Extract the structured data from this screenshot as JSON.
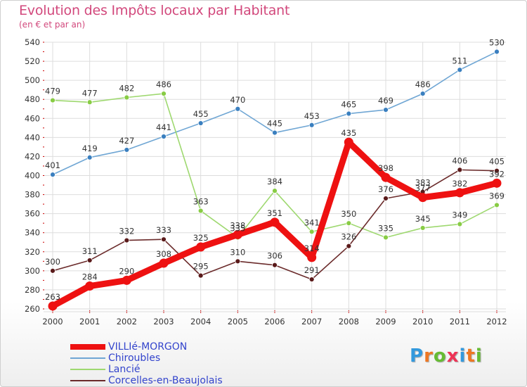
{
  "title": "Evolution des Impôts locaux par Habitant",
  "subtitle": "(en € et par an)",
  "colors": {
    "title": "#d2487c",
    "grid": "#dddddd",
    "axis_ticks": "#cc0000",
    "legend_text": "#3344cc"
  },
  "chart_data": {
    "type": "line",
    "title": "Evolution des Impôts locaux par Habitant",
    "subtitle": "(en € et par an)",
    "xlabel": "",
    "ylabel": "",
    "ylim": [
      260,
      540
    ],
    "yticks": [
      260,
      280,
      300,
      320,
      340,
      360,
      380,
      400,
      420,
      440,
      460,
      480,
      500,
      520,
      540
    ],
    "x": [
      "2000",
      "2001",
      "2002",
      "2003",
      "2004",
      "2005",
      "2006",
      "2007",
      "2008",
      "2009",
      "2010",
      "2011",
      "2012"
    ],
    "grid": true,
    "legend_position": "bottom-left",
    "series": [
      {
        "name": "VILLIé-MORGON",
        "color": "#ee1111",
        "marker_color": "#ee1111",
        "emphasis": true,
        "values": [
          263,
          284,
          290,
          308,
          325,
          338,
          351,
          314,
          435,
          398,
          377,
          382,
          392
        ]
      },
      {
        "name": "Chiroubles",
        "color": "#6fa6d4",
        "marker_color": "#3a7fbf",
        "emphasis": false,
        "values": [
          401,
          419,
          427,
          441,
          455,
          470,
          445,
          453,
          465,
          469,
          486,
          511,
          530
        ]
      },
      {
        "name": "Lancié",
        "color": "#9ed86f",
        "marker_color": "#88cc44",
        "emphasis": false,
        "values": [
          479,
          477,
          482,
          486,
          363,
          335,
          384,
          341,
          350,
          335,
          345,
          349,
          369
        ]
      },
      {
        "name": "Corcelles-en-Beaujolais",
        "color": "#6b2b2b",
        "marker_color": "#5a1a1a",
        "emphasis": false,
        "values": [
          300,
          311,
          332,
          333,
          295,
          310,
          306,
          291,
          326,
          376,
          383,
          406,
          405
        ]
      }
    ]
  },
  "logo": {
    "letters": [
      "P",
      "r",
      "o",
      "x",
      "i",
      "t",
      "i"
    ],
    "colors": [
      "#3399dd",
      "#ee7722",
      "#66bb33",
      "#ee3355",
      "#3399dd",
      "#ee7722",
      "#66bb33"
    ]
  }
}
